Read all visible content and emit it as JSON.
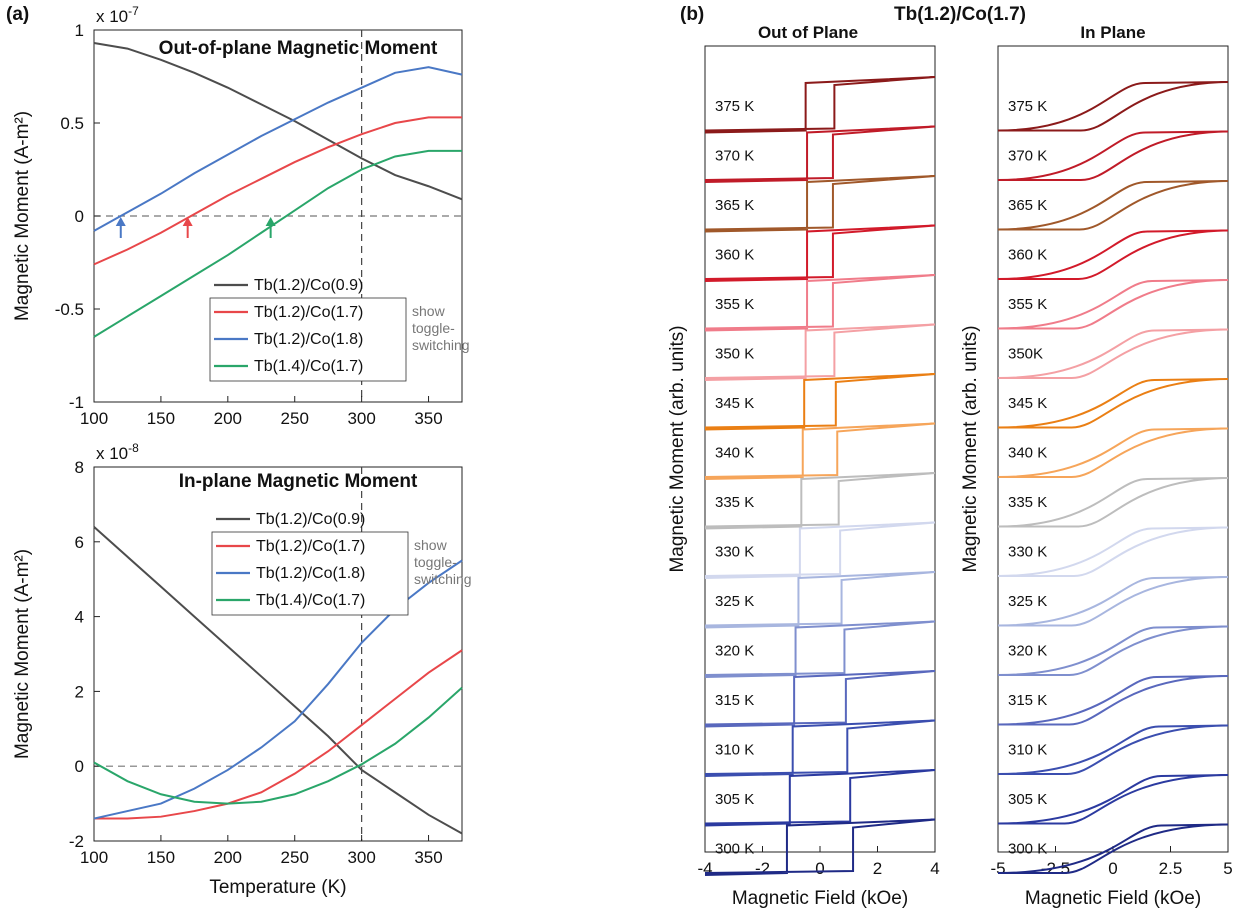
{
  "figure": {
    "panel_a_label": "(a)",
    "panel_b_label": "(b)",
    "panel_b_title": "Tb(1.2)/Co(1.7)"
  },
  "chart_data": [
    {
      "type": "line",
      "title": "Out-of-plane Magnetic Moment",
      "xlabel": "",
      "ylabel": "Magnetic Moment (A-m²)",
      "exponent_label": "x 10",
      "exponent_power": "-7",
      "xlim": [
        100,
        375
      ],
      "ylim": [
        -1,
        1
      ],
      "xticks": [
        100,
        150,
        200,
        250,
        300,
        350
      ],
      "yticks": [
        -1,
        -0.5,
        0,
        0.5,
        1
      ],
      "ytick_labels": [
        "-1",
        "-0.5",
        "0",
        "0.5",
        "1"
      ],
      "ref_hline": 0,
      "ref_vline": 300,
      "legend_note": [
        "show",
        "toggle-",
        "switching"
      ],
      "series": [
        {
          "name": "Tb(1.2)/Co(0.9)",
          "color": "#4d4d4d",
          "x": [
            100,
            125,
            150,
            175,
            200,
            225,
            250,
            275,
            300,
            325,
            350,
            375
          ],
          "y": [
            0.93,
            0.9,
            0.84,
            0.77,
            0.69,
            0.6,
            0.51,
            0.41,
            0.31,
            0.22,
            0.16,
            0.09
          ]
        },
        {
          "name": "Tb(1.2)/Co(1.7)",
          "color": "#e8474a",
          "x": [
            100,
            125,
            150,
            175,
            200,
            225,
            250,
            275,
            300,
            325,
            350,
            375
          ],
          "y": [
            -0.26,
            -0.18,
            -0.09,
            0.01,
            0.11,
            0.2,
            0.29,
            0.37,
            0.44,
            0.5,
            0.53,
            0.53
          ]
        },
        {
          "name": "Tb(1.2)/Co(1.8)",
          "color": "#4a78c5",
          "x": [
            100,
            125,
            150,
            175,
            200,
            225,
            250,
            275,
            300,
            325,
            350,
            375
          ],
          "y": [
            -0.08,
            0.02,
            0.12,
            0.23,
            0.33,
            0.43,
            0.52,
            0.61,
            0.69,
            0.77,
            0.8,
            0.76
          ]
        },
        {
          "name": "Tb(1.4)/Co(1.7)",
          "color": "#2aa66a",
          "x": [
            100,
            125,
            150,
            175,
            200,
            225,
            250,
            275,
            300,
            325,
            350,
            375
          ],
          "y": [
            -0.65,
            -0.54,
            -0.43,
            -0.32,
            -0.21,
            -0.09,
            0.03,
            0.15,
            0.25,
            0.32,
            0.35,
            0.35
          ]
        }
      ],
      "arrows": [
        {
          "x": 120,
          "color": "#4a78c5"
        },
        {
          "x": 170,
          "color": "#e8474a"
        },
        {
          "x": 232,
          "color": "#2aa66a"
        }
      ]
    },
    {
      "type": "line",
      "title": "In-plane Magnetic Moment",
      "xlabel": "Temperature (K)",
      "ylabel": "Magnetic Moment (A-m²)",
      "exponent_label": "x 10",
      "exponent_power": "-8",
      "xlim": [
        100,
        375
      ],
      "ylim": [
        -2,
        8
      ],
      "xticks": [
        100,
        150,
        200,
        250,
        300,
        350
      ],
      "yticks": [
        -2,
        0,
        2,
        4,
        6,
        8
      ],
      "ytick_labels": [
        "-2",
        "0",
        "2",
        "4",
        "6",
        "8"
      ],
      "ref_hline": 0,
      "ref_vline": 300,
      "legend_note": [
        "show",
        "toggle-",
        "switching"
      ],
      "series": [
        {
          "name": "Tb(1.2)/Co(0.9)",
          "color": "#4d4d4d",
          "x": [
            100,
            125,
            150,
            175,
            200,
            225,
            250,
            275,
            300,
            325,
            350,
            375
          ],
          "y": [
            6.4,
            5.6,
            4.8,
            4.0,
            3.2,
            2.4,
            1.6,
            0.8,
            -0.1,
            -0.7,
            -1.3,
            -1.8
          ]
        },
        {
          "name": "Tb(1.2)/Co(1.7)",
          "color": "#e8474a",
          "x": [
            100,
            125,
            150,
            175,
            200,
            225,
            250,
            275,
            300,
            325,
            350,
            375
          ],
          "y": [
            -1.4,
            -1.4,
            -1.35,
            -1.2,
            -1.0,
            -0.7,
            -0.2,
            0.4,
            1.1,
            1.8,
            2.5,
            3.1
          ]
        },
        {
          "name": "Tb(1.2)/Co(1.8)",
          "color": "#4a78c5",
          "x": [
            100,
            125,
            150,
            175,
            200,
            225,
            250,
            275,
            300,
            325,
            350,
            375
          ],
          "y": [
            -1.4,
            -1.2,
            -1.0,
            -0.6,
            -0.1,
            0.5,
            1.2,
            2.2,
            3.3,
            4.2,
            4.9,
            5.5
          ]
        },
        {
          "name": "Tb(1.4)/Co(1.7)",
          "color": "#2aa66a",
          "x": [
            100,
            125,
            150,
            175,
            200,
            225,
            250,
            275,
            300,
            325,
            350,
            375
          ],
          "y": [
            0.1,
            -0.4,
            -0.75,
            -0.95,
            -1.0,
            -0.95,
            -0.75,
            -0.4,
            0.05,
            0.6,
            1.3,
            2.1
          ]
        }
      ]
    },
    {
      "type": "line",
      "title": "Out of Plane",
      "xlabel": "Magnetic Field (kOe)",
      "ylabel": "Magnetic Moment (arb. units)",
      "xlim": [
        -4,
        4
      ],
      "xticks": [
        -4,
        -2,
        0,
        2,
        4
      ],
      "xtick_labels": [
        "-4",
        "-2",
        "0",
        "2",
        "4"
      ],
      "series": [
        {
          "name": "375 K",
          "color": "#8b1a1a",
          "coercive_field": 0.5
        },
        {
          "name": "370 K",
          "color": "#c01b28",
          "coercive_field": 0.45
        },
        {
          "name": "365 K",
          "color": "#a0582a",
          "coercive_field": 0.45
        },
        {
          "name": "360 K",
          "color": "#d21a2a",
          "coercive_field": 0.45
        },
        {
          "name": "355 K",
          "color": "#f07c8a",
          "coercive_field": 0.45
        },
        {
          "name": "350 K",
          "color": "#f4a0a4",
          "coercive_field": 0.5
        },
        {
          "name": "345 K",
          "color": "#ea7f14",
          "coercive_field": 0.55
        },
        {
          "name": "340 K",
          "color": "#f6a55a",
          "coercive_field": 0.6
        },
        {
          "name": "335 K",
          "color": "#bdbdbd",
          "coercive_field": 0.65
        },
        {
          "name": "330 K",
          "color": "#d2d8ee",
          "coercive_field": 0.7
        },
        {
          "name": "325 K",
          "color": "#a8b6df",
          "coercive_field": 0.75
        },
        {
          "name": "320 K",
          "color": "#7f8fce",
          "coercive_field": 0.85
        },
        {
          "name": "315 K",
          "color": "#5968bd",
          "coercive_field": 0.9
        },
        {
          "name": "310 K",
          "color": "#3b4eaf",
          "coercive_field": 0.95
        },
        {
          "name": "305 K",
          "color": "#2b3aa0",
          "coercive_field": 1.05
        },
        {
          "name": "300 K",
          "color": "#1f2a86",
          "coercive_field": 1.15
        }
      ]
    },
    {
      "type": "line",
      "title": "In Plane",
      "xlabel": "Magnetic Field (kOe)",
      "ylabel": "Magnetic Moment (arb. units)",
      "xlim": [
        -5,
        5
      ],
      "xticks": [
        -5,
        -2.5,
        0,
        2.5,
        5
      ],
      "xtick_labels": [
        "-5",
        "-2.5",
        "0",
        "2.5",
        "5"
      ],
      "series": [
        {
          "name": "375 K",
          "color": "#8b1a1a",
          "coercive_field": 0.3
        },
        {
          "name": "370 K",
          "color": "#c01b28",
          "coercive_field": 0.3
        },
        {
          "name": "365 K",
          "color": "#a0582a",
          "coercive_field": 0.35
        },
        {
          "name": "360 K",
          "color": "#d21a2a",
          "coercive_field": 0.4
        },
        {
          "name": "355 K",
          "color": "#f07c8a",
          "coercive_field": 0.6
        },
        {
          "name": "350K",
          "color": "#f4a0a4",
          "coercive_field": 0.7
        },
        {
          "name": "345 K",
          "color": "#ea7f14",
          "coercive_field": 0.7
        },
        {
          "name": "340 K",
          "color": "#f6a55a",
          "coercive_field": 0.7
        },
        {
          "name": "335 K",
          "color": "#bdbdbd",
          "coercive_field": 0.4
        },
        {
          "name": "330 K",
          "color": "#d2d8ee",
          "coercive_field": 0.6
        },
        {
          "name": "325 K",
          "color": "#a8b6df",
          "coercive_field": 0.7
        },
        {
          "name": "320 K",
          "color": "#7f8fce",
          "coercive_field": 0.8
        },
        {
          "name": "315 K",
          "color": "#5968bd",
          "coercive_field": 0.8
        },
        {
          "name": "310 K",
          "color": "#3b4eaf",
          "coercive_field": 0.9
        },
        {
          "name": "305 K",
          "color": "#2b3aa0",
          "coercive_field": 1.0
        },
        {
          "name": "300 K",
          "color": "#1f2a86",
          "coercive_field": 1.0
        }
      ]
    }
  ]
}
